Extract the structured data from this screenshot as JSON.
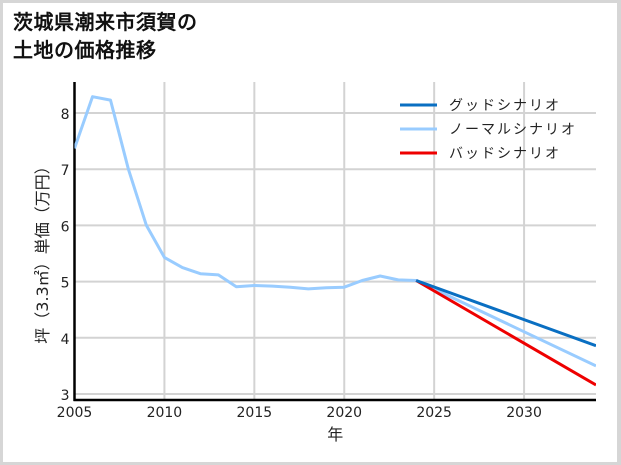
{
  "title": "茨城県潮来市須賀の\n土地の価格推移",
  "chart_data": {
    "type": "line",
    "title": "茨城県潮来市須賀の土地の価格推移",
    "xlabel": "年",
    "ylabel": "坪（3.3㎡）単価（万円）",
    "xlim": [
      2005,
      2034
    ],
    "ylim": [
      2.9,
      8.55
    ],
    "xticks": [
      2005,
      2010,
      2015,
      2020,
      2025,
      2030
    ],
    "yticks": [
      3,
      4,
      5,
      6,
      7,
      8
    ],
    "grid": true,
    "legend_position": "upper right",
    "series": [
      {
        "name": "グッドシナリオ",
        "color": "#0a6fc2",
        "x": [
          2024,
          2034
        ],
        "values": [
          5.02,
          3.86
        ]
      },
      {
        "name": "ノーマルシナリオ",
        "color": "#99ccff",
        "x": [
          2005,
          2006,
          2007,
          2008,
          2009,
          2010,
          2011,
          2012,
          2013,
          2014,
          2015,
          2016,
          2017,
          2018,
          2019,
          2020,
          2021,
          2022,
          2023,
          2024,
          2034
        ],
        "values": [
          7.37,
          8.29,
          8.23,
          7.0,
          6.0,
          5.43,
          5.25,
          5.14,
          5.12,
          4.91,
          4.93,
          4.92,
          4.9,
          4.87,
          4.89,
          4.9,
          5.02,
          5.1,
          5.03,
          5.02,
          3.5
        ]
      },
      {
        "name": "バッドシナリオ",
        "color": "#ee0000",
        "x": [
          2024,
          2034
        ],
        "values": [
          5.02,
          3.16
        ]
      }
    ]
  }
}
